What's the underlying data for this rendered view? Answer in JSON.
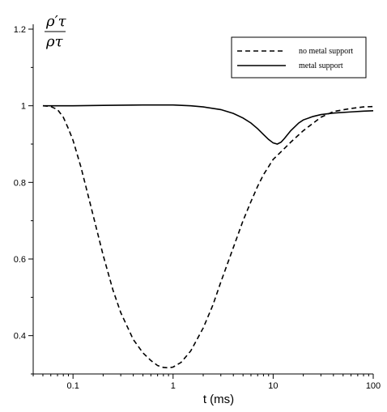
{
  "chart_data": {
    "type": "line",
    "xscale": "log",
    "xlim": [
      0.04,
      100
    ],
    "ylim": [
      0.3,
      1.2
    ],
    "xlabel": "t (ms)",
    "ylabel": {
      "numerator": "ρ′τ",
      "denominator": "ρτ"
    },
    "x_tick_labels": [
      {
        "x": 0.1,
        "label": "0.1"
      },
      {
        "x": 1,
        "label": "1"
      },
      {
        "x": 10,
        "label": "10"
      },
      {
        "x": 100,
        "label": "100"
      }
    ],
    "y_tick_labels": [
      {
        "y": 0.4,
        "label": "0.4"
      },
      {
        "y": 0.6,
        "label": "0.6"
      },
      {
        "y": 0.8,
        "label": "0.8"
      },
      {
        "y": 1.0,
        "label": "1"
      },
      {
        "y": 1.2,
        "label": "1.2"
      }
    ],
    "legend_position": "top-right",
    "grid": false,
    "series": [
      {
        "name": "no metal support",
        "style": "dashed",
        "color": "#000000",
        "points": [
          [
            0.05,
            1.0
          ],
          [
            0.06,
            0.998
          ],
          [
            0.07,
            0.99
          ],
          [
            0.08,
            0.97
          ],
          [
            0.09,
            0.94
          ],
          [
            0.1,
            0.91
          ],
          [
            0.12,
            0.84
          ],
          [
            0.15,
            0.74
          ],
          [
            0.2,
            0.61
          ],
          [
            0.25,
            0.52
          ],
          [
            0.3,
            0.46
          ],
          [
            0.4,
            0.39
          ],
          [
            0.5,
            0.355
          ],
          [
            0.6,
            0.335
          ],
          [
            0.7,
            0.322
          ],
          [
            0.8,
            0.317
          ],
          [
            0.9,
            0.316
          ],
          [
            1.0,
            0.318
          ],
          [
            1.2,
            0.33
          ],
          [
            1.5,
            0.36
          ],
          [
            2.0,
            0.42
          ],
          [
            2.5,
            0.48
          ],
          [
            3.0,
            0.54
          ],
          [
            4.0,
            0.63
          ],
          [
            5.0,
            0.7
          ],
          [
            6.0,
            0.75
          ],
          [
            7.0,
            0.79
          ],
          [
            8.0,
            0.82
          ],
          [
            10.0,
            0.86
          ],
          [
            12.0,
            0.88
          ],
          [
            15.0,
            0.905
          ],
          [
            20.0,
            0.935
          ],
          [
            30.0,
            0.97
          ],
          [
            40.0,
            0.985
          ],
          [
            60.0,
            0.993
          ],
          [
            80.0,
            0.997
          ],
          [
            100.0,
            0.998
          ]
        ]
      },
      {
        "name": "metal support",
        "style": "solid",
        "color": "#000000",
        "points": [
          [
            0.05,
            1.0
          ],
          [
            0.1,
            1.0
          ],
          [
            0.2,
            1.001
          ],
          [
            0.5,
            1.002
          ],
          [
            1.0,
            1.002
          ],
          [
            1.5,
            1.0
          ],
          [
            2.0,
            0.997
          ],
          [
            3.0,
            0.99
          ],
          [
            4.0,
            0.98
          ],
          [
            5.0,
            0.968
          ],
          [
            6.0,
            0.955
          ],
          [
            7.0,
            0.94
          ],
          [
            8.0,
            0.925
          ],
          [
            9.0,
            0.912
          ],
          [
            10.0,
            0.903
          ],
          [
            11.0,
            0.9
          ],
          [
            12.0,
            0.905
          ],
          [
            13.0,
            0.915
          ],
          [
            15.0,
            0.935
          ],
          [
            18.0,
            0.955
          ],
          [
            20.0,
            0.963
          ],
          [
            25.0,
            0.972
          ],
          [
            30.0,
            0.977
          ],
          [
            40.0,
            0.981
          ],
          [
            60.0,
            0.984
          ],
          [
            80.0,
            0.986
          ],
          [
            100.0,
            0.987
          ]
        ]
      }
    ]
  }
}
